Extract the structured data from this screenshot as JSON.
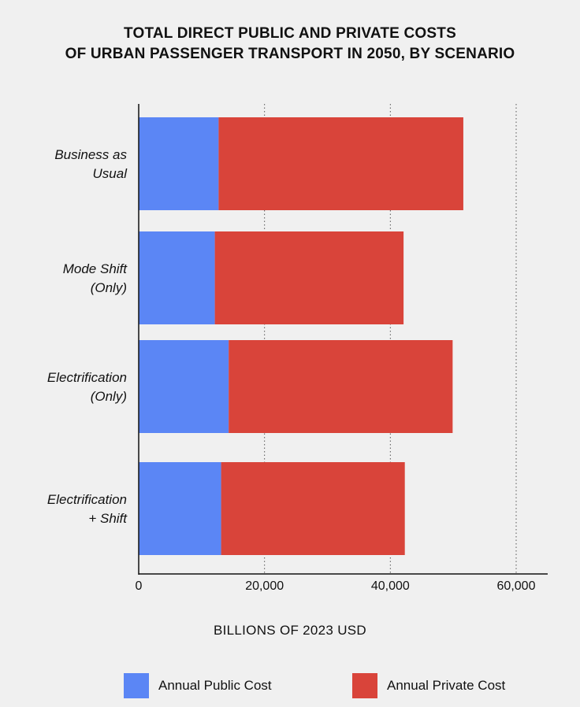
{
  "title_line1": "TOTAL DIRECT PUBLIC AND PRIVATE COSTS",
  "title_line2": "OF URBAN PASSENGER TRANSPORT IN 2050, BY SCENARIO",
  "chart_data": {
    "type": "bar",
    "orientation": "horizontal",
    "stacked": true,
    "title": "TOTAL DIRECT PUBLIC AND PRIVATE COSTS OF URBAN PASSENGER TRANSPORT IN 2050, BY SCENARIO",
    "xlabel": "BILLIONS OF 2023 USD",
    "ylabel": "",
    "xlim": [
      0,
      65000
    ],
    "xticks": [
      0,
      20000,
      40000,
      60000
    ],
    "xtick_labels": [
      "0",
      "20,000",
      "40,000",
      "60,000"
    ],
    "grid": "vertical dotted",
    "legend_position": "bottom",
    "categories": [
      [
        "Business as",
        "Usual"
      ],
      [
        "Mode Shift",
        "(Only)"
      ],
      [
        "Electrification",
        "(Only)"
      ],
      [
        "Electrification",
        "+ Shift"
      ]
    ],
    "series": [
      {
        "name": "Annual Public Cost",
        "color": "#5b86f5",
        "values": [
          12700,
          12100,
          14300,
          13100
        ]
      },
      {
        "name": "Annual Private Cost",
        "color": "#d9443a",
        "values": [
          38900,
          30000,
          35600,
          29200
        ]
      }
    ]
  }
}
